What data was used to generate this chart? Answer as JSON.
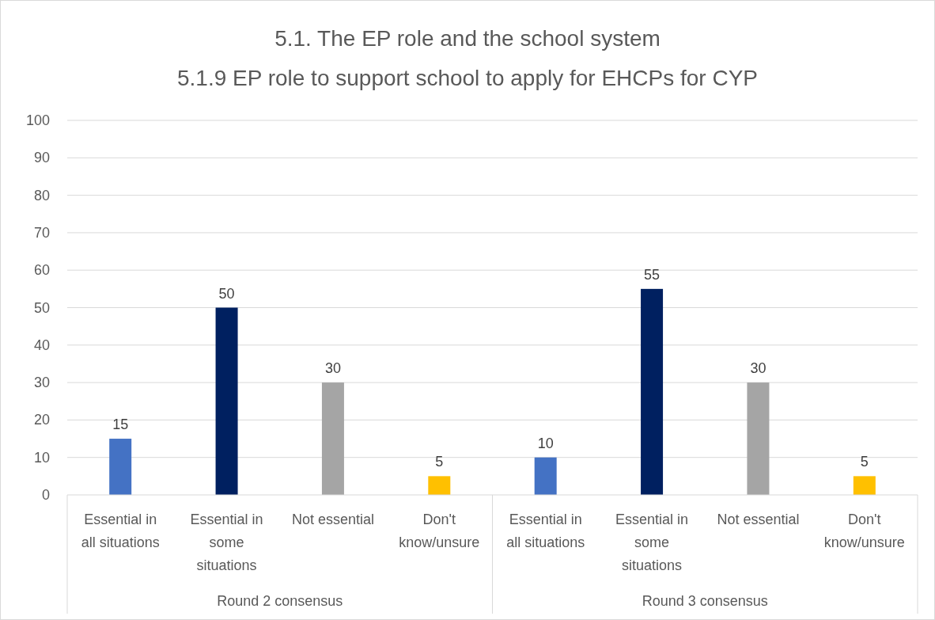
{
  "chart_data": {
    "type": "bar",
    "title": "5.1. The EP role and the school system",
    "subtitle": "5.1.9 EP role to support school to apply for EHCPs for CYP",
    "categories": [
      "Essential in all situations",
      "Essential in some situations",
      "Not essential",
      "Don't know/unsure",
      "Essential in all situations",
      "Essential in some situations",
      "Not essential",
      "Don't know/unsure"
    ],
    "values": [
      15,
      50,
      30,
      5,
      10,
      55,
      30,
      5
    ],
    "colors": [
      "#4472c4",
      "#002060",
      "#a5a5a5",
      "#ffc000",
      "#4472c4",
      "#002060",
      "#a5a5a5",
      "#ffc000"
    ],
    "ylim": [
      0,
      100
    ],
    "yticks": [
      0,
      10,
      20,
      30,
      40,
      50,
      60,
      70,
      80,
      90,
      100
    ],
    "grid": "y",
    "data_labels": true,
    "annotations": [
      "Round 2 consensus",
      "Round 3 consensus"
    ]
  }
}
